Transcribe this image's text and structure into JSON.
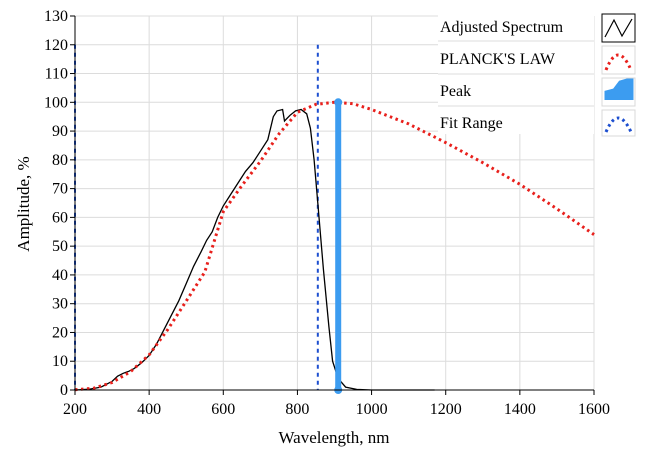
{
  "chart_data": {
    "type": "line",
    "title": "",
    "xlabel": "Wavelength, nm",
    "ylabel": "Amplitude, %",
    "xlim": [
      200,
      1600
    ],
    "ylim": [
      0,
      130
    ],
    "x_ticks": [
      200,
      400,
      600,
      800,
      1000,
      1200,
      1400,
      1600
    ],
    "y_ticks": [
      0,
      10,
      20,
      30,
      40,
      50,
      60,
      70,
      80,
      90,
      100,
      110,
      120,
      130
    ],
    "grid": true,
    "legend_position": "top-right",
    "series": [
      {
        "name": "Adjusted Spectrum",
        "style": "solid",
        "color": "#000000",
        "points": [
          [
            200,
            0
          ],
          [
            240,
            0.3
          ],
          [
            270,
            1
          ],
          [
            300,
            3
          ],
          [
            315,
            4.8
          ],
          [
            330,
            5.8
          ],
          [
            345,
            6.5
          ],
          [
            360,
            7.5
          ],
          [
            380,
            9.5
          ],
          [
            400,
            12
          ],
          [
            420,
            16
          ],
          [
            440,
            21
          ],
          [
            460,
            26
          ],
          [
            480,
            31
          ],
          [
            500,
            37
          ],
          [
            520,
            43
          ],
          [
            540,
            48
          ],
          [
            555,
            52
          ],
          [
            570,
            55
          ],
          [
            585,
            60
          ],
          [
            600,
            64
          ],
          [
            620,
            68
          ],
          [
            640,
            72
          ],
          [
            660,
            76
          ],
          [
            680,
            79
          ],
          [
            700,
            83
          ],
          [
            720,
            87
          ],
          [
            735,
            95
          ],
          [
            745,
            97
          ],
          [
            760,
            97.5
          ],
          [
            765,
            93.5
          ],
          [
            780,
            95.5
          ],
          [
            795,
            97
          ],
          [
            810,
            97.5
          ],
          [
            825,
            96
          ],
          [
            835,
            91
          ],
          [
            845,
            80
          ],
          [
            855,
            65
          ],
          [
            870,
            42
          ],
          [
            885,
            22
          ],
          [
            895,
            10
          ],
          [
            910,
            4
          ],
          [
            930,
            1
          ],
          [
            960,
            0.2
          ],
          [
            1000,
            0
          ],
          [
            1170,
            0
          ]
        ]
      },
      {
        "name": "PLANCK'S LAW",
        "style": "dotted",
        "color": "#e8201c",
        "points": [
          [
            200,
            0.1
          ],
          [
            250,
            0.6
          ],
          [
            300,
            2.6
          ],
          [
            350,
            6.4
          ],
          [
            400,
            12.2
          ],
          [
            450,
            21
          ],
          [
            500,
            30.9
          ],
          [
            550,
            41
          ],
          [
            600,
            62
          ],
          [
            650,
            71
          ],
          [
            700,
            79.5
          ],
          [
            750,
            89
          ],
          [
            800,
            96.5
          ],
          [
            850,
            99.3
          ],
          [
            900,
            100
          ],
          [
            950,
            99.5
          ],
          [
            1000,
            97.5
          ],
          [
            1100,
            92.5
          ],
          [
            1200,
            86
          ],
          [
            1300,
            79
          ],
          [
            1400,
            71.5
          ],
          [
            1500,
            63
          ],
          [
            1600,
            54
          ]
        ]
      }
    ],
    "peak": {
      "name": "Peak",
      "x": 910,
      "y_min": 0,
      "y_max": 100,
      "color": "#3c9cf0"
    },
    "fit_range": {
      "name": "Fit Range",
      "x_start": 200,
      "x_end": 855,
      "y_max": 120,
      "color": "#1d4fd0"
    },
    "legend": [
      "Adjusted Spectrum",
      "PLANCK'S LAW",
      "Peak",
      "Fit Range"
    ]
  }
}
